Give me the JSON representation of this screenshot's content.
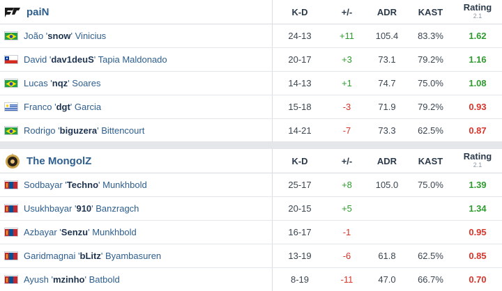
{
  "columns": {
    "kd": "K-D",
    "pm": "+/-",
    "adr": "ADR",
    "kast": "KAST",
    "rating": "Rating",
    "rating_sub": "2.1"
  },
  "teams": [
    {
      "name": "paiN",
      "logo_icon": "pain-logo-icon",
      "players": [
        {
          "flag": "brazil",
          "first": "João '",
          "nick": "snow",
          "last": "' Vinicius",
          "kd": "24-13",
          "pm": "+11",
          "pm_sign": "pos",
          "adr": "105.4",
          "kast": "83.3%",
          "rating": "1.62",
          "rating_sign": "good"
        },
        {
          "flag": "chile",
          "first": "David '",
          "nick": "dav1deuS",
          "last": "' Tapia Maldonado",
          "kd": "20-17",
          "pm": "+3",
          "pm_sign": "pos",
          "adr": "73.1",
          "kast": "79.2%",
          "rating": "1.16",
          "rating_sign": "good"
        },
        {
          "flag": "brazil",
          "first": "Lucas '",
          "nick": "nqz",
          "last": "' Soares",
          "kd": "14-13",
          "pm": "+1",
          "pm_sign": "pos",
          "adr": "74.7",
          "kast": "75.0%",
          "rating": "1.08",
          "rating_sign": "good"
        },
        {
          "flag": "uruguay",
          "first": "Franco '",
          "nick": "dgt",
          "last": "' Garcia",
          "kd": "15-18",
          "pm": "-3",
          "pm_sign": "neg",
          "adr": "71.9",
          "kast": "79.2%",
          "rating": "0.93",
          "rating_sign": "bad"
        },
        {
          "flag": "brazil",
          "first": "Rodrigo '",
          "nick": "biguzera",
          "last": "' Bittencourt",
          "kd": "14-21",
          "pm": "-7",
          "pm_sign": "neg",
          "adr": "73.3",
          "kast": "62.5%",
          "rating": "0.87",
          "rating_sign": "bad"
        }
      ]
    },
    {
      "name": "The MongolZ",
      "logo_icon": "mongolz-logo-icon",
      "players": [
        {
          "flag": "mongolia",
          "first": "Sodbayar '",
          "nick": "Techno",
          "last": "' Munkhbold",
          "kd": "25-17",
          "pm": "+8",
          "pm_sign": "pos",
          "adr": "105.0",
          "kast": "75.0%",
          "rating": "1.39",
          "rating_sign": "good"
        },
        {
          "flag": "mongolia",
          "first": "Usukhbayar '",
          "nick": "910",
          "last": "' Banzragch",
          "kd": "20-15",
          "pm": "+5",
          "pm_sign": "pos",
          "adr": "",
          "kast": "",
          "rating": "1.34",
          "rating_sign": "good"
        },
        {
          "flag": "mongolia",
          "first": "Azbayar '",
          "nick": "Senzu",
          "last": "' Munkhbold",
          "kd": "16-17",
          "pm": "-1",
          "pm_sign": "neg",
          "adr": "",
          "kast": "",
          "rating": "0.95",
          "rating_sign": "bad"
        },
        {
          "flag": "mongolia",
          "first": "Garidmagnai '",
          "nick": "bLitz",
          "last": "' Byambasuren",
          "kd": "13-19",
          "pm": "-6",
          "pm_sign": "neg",
          "adr": "61.8",
          "kast": "62.5%",
          "rating": "0.85",
          "rating_sign": "bad"
        },
        {
          "flag": "mongolia",
          "first": "Ayush '",
          "nick": "mzinho",
          "last": "' Batbold",
          "kd": "8-19",
          "pm": "-11",
          "pm_sign": "neg",
          "adr": "47.0",
          "kast": "66.7%",
          "rating": "0.70",
          "rating_sign": "bad"
        }
      ]
    }
  ],
  "colors": {
    "positive": "#2e9b2e",
    "negative": "#d9342a",
    "player_link": "#2d5e8e"
  }
}
